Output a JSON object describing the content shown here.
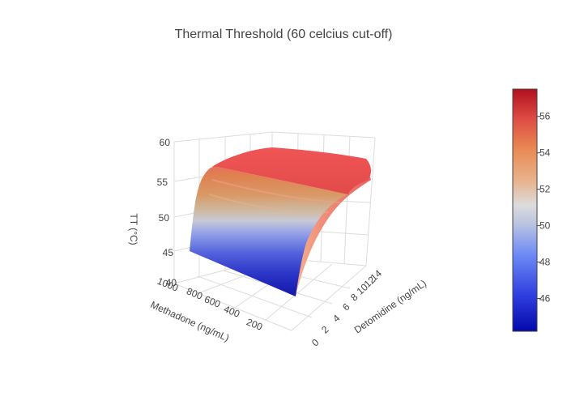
{
  "chart_data": {
    "type": "surface",
    "title": "Thermal Threshold (60 celcius cut-off)",
    "xlabel": "Methadone (ng/mL)",
    "ylabel": "Detomidine (ng/mL)",
    "zlabel": "TT (°C)",
    "x_ticks": [
      "1000",
      "800",
      "600",
      "400",
      "200"
    ],
    "y_ticks": [
      "0",
      "2",
      "4",
      "6",
      "8",
      "10",
      "12",
      "14"
    ],
    "z_ticks": [
      "40",
      "45",
      "50",
      "55",
      "60"
    ],
    "zlim": [
      40,
      60
    ],
    "colorscale": "RdBu (reversed)",
    "colorbar": {
      "ticks": [
        "46",
        "48",
        "50",
        "52",
        "54",
        "56"
      ],
      "range": [
        44.2,
        57.5
      ]
    },
    "surface_trend": "TT rises steeply from about 44.5 °C at 0 ng/mL detomidine to about 56.5–57 °C by about 4 ng/mL, then plateaus; nearly independent of methadone",
    "y_samples": [
      0,
      0.5,
      1,
      2,
      3,
      4,
      6,
      8,
      10,
      12,
      14
    ],
    "z_samples": [
      44.5,
      47.5,
      50.2,
      53.8,
      55.6,
      56.4,
      56.8,
      57.0,
      57.2,
      57.2,
      57.1
    ]
  },
  "colors": {
    "low": "#0508aa",
    "mid": "#dcdcdc",
    "high": "#b2101f"
  }
}
